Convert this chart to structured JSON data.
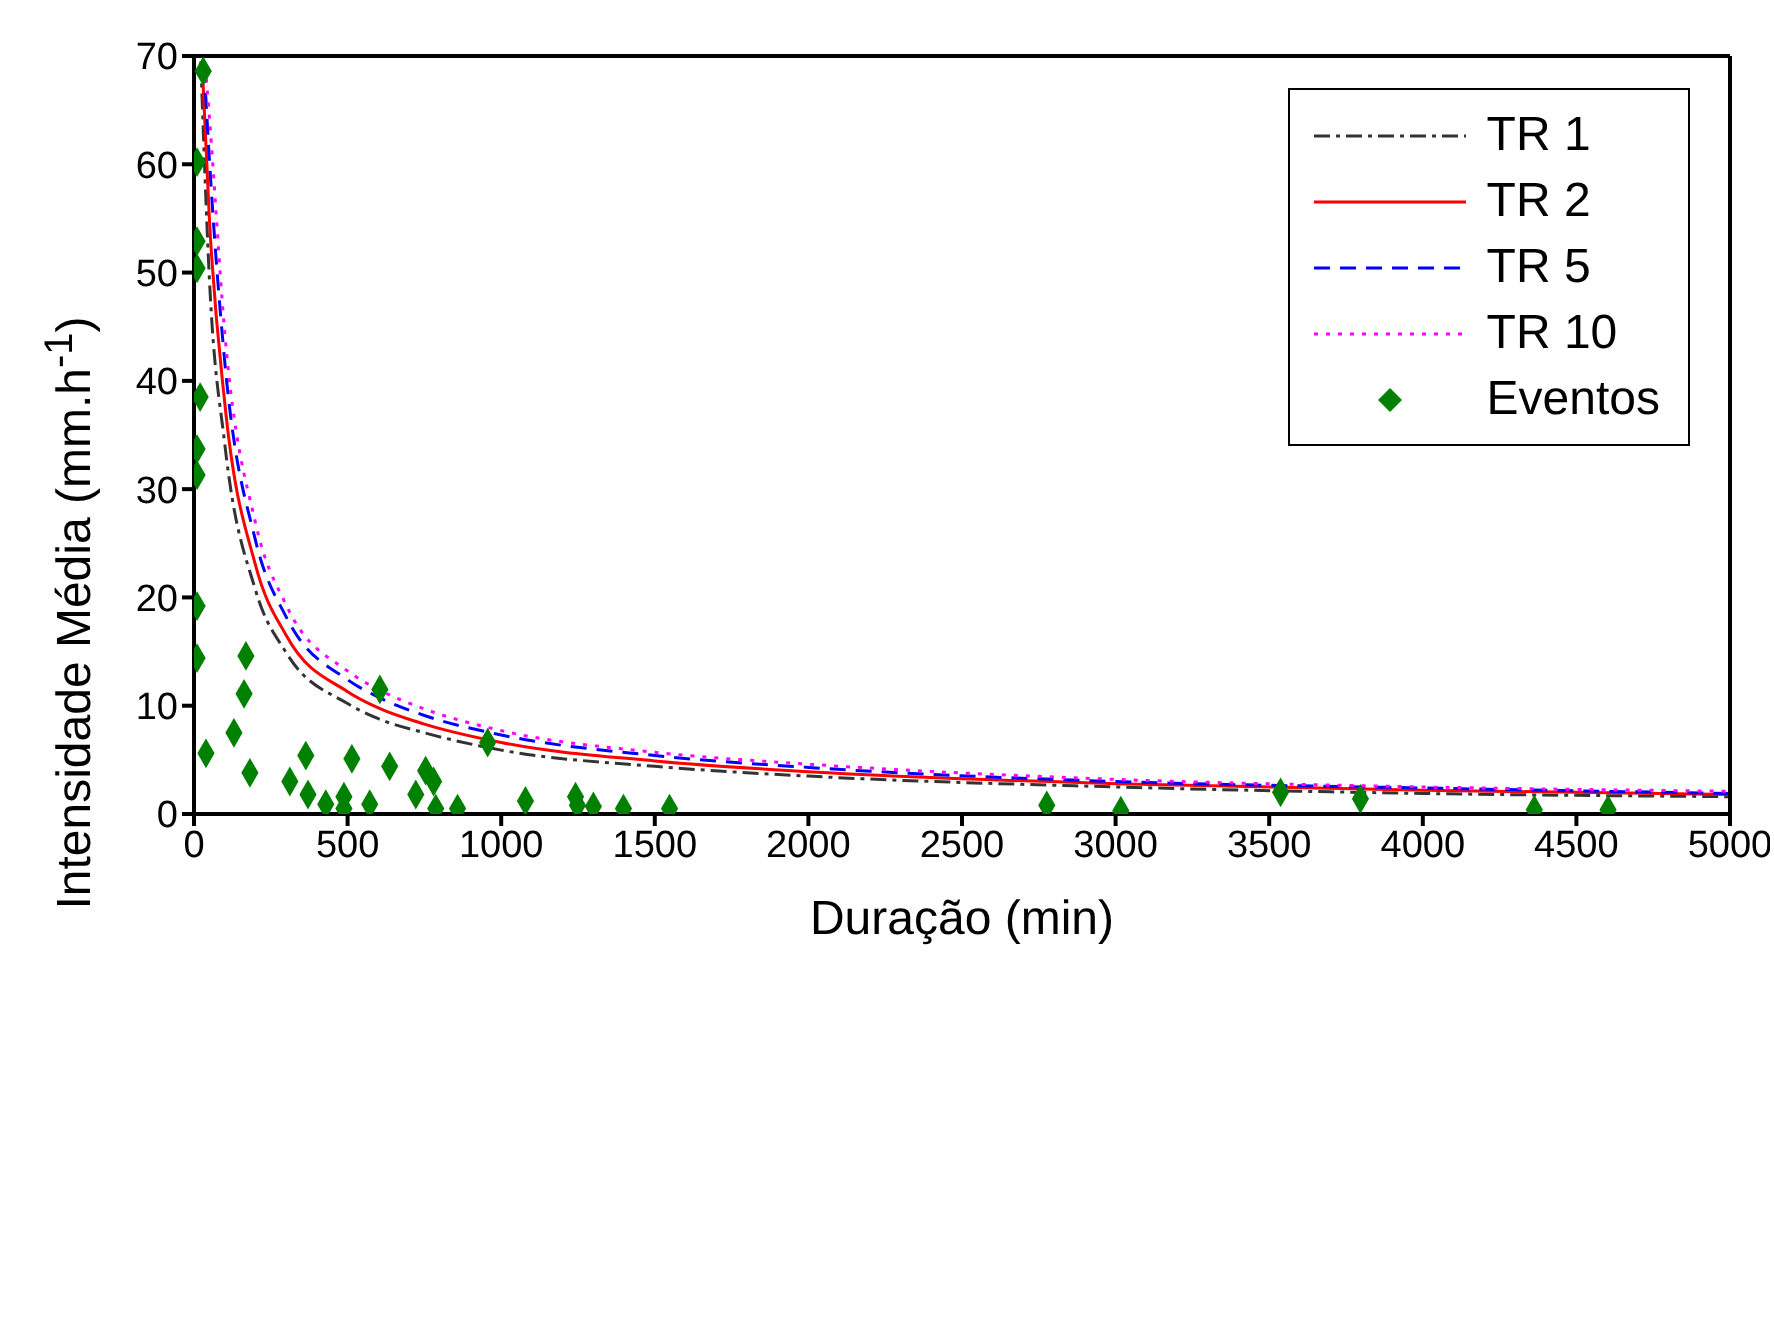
{
  "chart_data": {
    "type": "line",
    "xlabel": "Duração (min)",
    "ylabel": "Intensidade Média (mm.h$^{-1}$)",
    "xlim": [
      0,
      5000
    ],
    "xticks": [
      0,
      500,
      1000,
      1500,
      2000,
      2500,
      3000,
      3500,
      4000,
      4500,
      5000
    ],
    "ylim": [
      0,
      70
    ],
    "yticks": [
      0,
      10,
      20,
      30,
      40,
      50,
      60,
      70
    ],
    "legend": "top right",
    "marker": "none",
    "series": [
      {
        "name": "TR 1",
        "color": "#333333",
        "line_style": "dashdot",
        "x": [
          22,
          50,
          100,
          200,
          300,
          500,
          600,
          750,
          1000,
          1500,
          2000,
          3000,
          4000,
          5000
        ],
        "values": [
          69.5,
          49.5,
          34.2,
          20.7,
          14.9,
          10.2,
          8.8,
          7.5,
          5.9,
          4.4,
          3.5,
          2.5,
          1.9,
          1.6
        ]
      },
      {
        "name": "TR 2",
        "color": "#ff0000",
        "line_style": "solid",
        "x": [
          27,
          50,
          100,
          200,
          300,
          500,
          600,
          750,
          1000,
          1500,
          2000,
          3000,
          4000,
          5000
        ],
        "values": [
          69,
          55,
          38,
          23,
          16.5,
          11.3,
          9.8,
          8.3,
          6.6,
          4.9,
          3.9,
          2.8,
          2.2,
          1.8
        ]
      },
      {
        "name": "TR 5",
        "color": "#0000ff",
        "line_style": "dashed",
        "x": [
          33,
          50,
          100,
          200,
          300,
          500,
          600,
          750,
          1000,
          1500,
          2000,
          3000,
          4000,
          5000
        ],
        "values": [
          69,
          60.5,
          41.8,
          25.3,
          18.2,
          12.4,
          10.8,
          9.1,
          7.3,
          5.4,
          4.3,
          3.0,
          2.4,
          1.9
        ]
      },
      {
        "name": "TR 10",
        "color": "#ff00ff",
        "line_style": "dotted",
        "x": [
          37,
          50,
          100,
          200,
          300,
          500,
          600,
          750,
          1000,
          1500,
          2000,
          3000,
          4000,
          5000
        ],
        "values": [
          69,
          64.4,
          44.5,
          26.9,
          19.3,
          13.2,
          11.5,
          9.7,
          7.7,
          5.7,
          4.6,
          3.2,
          2.5,
          2.1
        ]
      },
      {
        "name": "Eventos",
        "type": "scatter",
        "color": "#008000",
        "marker": "diamond",
        "x": [
          30,
          10,
          10,
          10,
          20,
          10,
          10,
          10,
          10,
          169,
          163,
          605,
          130,
          39,
          364,
          514,
          956,
          182,
          637,
          754,
          780,
          312,
          371,
          488,
          722,
          429,
          488,
          572,
          787,
          858,
          1079,
          1242,
          1248,
          1300,
          1398,
          1548,
          2776,
          3017,
          3537,
          3797,
          4363,
          4603
        ],
        "values": [
          68.6,
          60.2,
          52.9,
          50.4,
          38.5,
          33.7,
          31.3,
          19.2,
          14.4,
          14.6,
          11.1,
          11.5,
          7.5,
          5.6,
          5.4,
          5.1,
          6.6,
          3.8,
          4.4,
          4.0,
          3.0,
          3.0,
          1.8,
          1.6,
          1.8,
          0.9,
          0.5,
          0.9,
          0.5,
          0.5,
          1.2,
          1.6,
          0.8,
          0.7,
          0.5,
          0.5,
          0.8,
          0.3,
          2.0,
          1.4,
          0.4,
          0.4
        ]
      }
    ]
  }
}
